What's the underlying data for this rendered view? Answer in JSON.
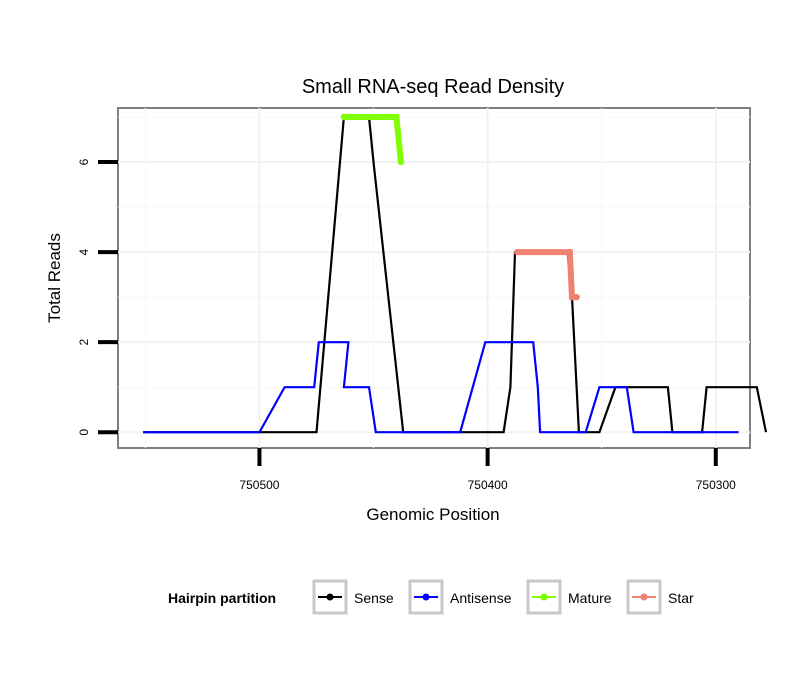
{
  "chart_data": {
    "type": "line",
    "title": "Small RNA-seq Read Density",
    "xlabel": "Genomic Position",
    "ylabel": "Total Reads",
    "x_reversed": true,
    "xlim": [
      750562,
      750285
    ],
    "ylim": [
      -0.35,
      7.2
    ],
    "x_ticks": [
      750500,
      750400,
      750300
    ],
    "x_tick_labels": [
      "750500",
      "750400",
      "750300"
    ],
    "y_ticks": [
      0,
      2,
      4,
      6
    ],
    "y_tick_labels": [
      "0",
      "2",
      "4",
      "6"
    ],
    "grid": true,
    "legend": {
      "title": "Hairpin partition",
      "position": "bottom",
      "entries": [
        {
          "name": "Sense",
          "color": "#000000"
        },
        {
          "name": "Antisense",
          "color": "#0000ff"
        },
        {
          "name": "Mature",
          "color": "#7fff00"
        },
        {
          "name": "Star",
          "color": "#f08070"
        }
      ]
    },
    "series": [
      {
        "name": "Sense",
        "color": "#000000",
        "points": [
          [
            750551,
            0
          ],
          [
            750475,
            0
          ],
          [
            750463,
            7
          ],
          [
            750452,
            7
          ],
          [
            750450,
            6
          ],
          [
            750437,
            0
          ],
          [
            750393,
            0
          ],
          [
            750390,
            1
          ],
          [
            750388,
            4
          ],
          [
            750365,
            4
          ],
          [
            750363,
            3
          ],
          [
            750360,
            0
          ],
          [
            750351,
            0
          ],
          [
            750344,
            1
          ],
          [
            750321,
            1
          ],
          [
            750319,
            0
          ],
          [
            750306,
            0
          ],
          [
            750304,
            1
          ],
          [
            750282,
            1
          ],
          [
            750278,
            0
          ]
        ]
      },
      {
        "name": "Antisense",
        "color": "#0000ff",
        "points": [
          [
            750551,
            0
          ],
          [
            750500,
            0
          ],
          [
            750489,
            1
          ],
          [
            750476,
            1
          ],
          [
            750474,
            2
          ],
          [
            750461,
            2
          ],
          [
            750463,
            1
          ],
          [
            750452,
            1
          ],
          [
            750449,
            0
          ],
          [
            750412,
            0
          ],
          [
            750401,
            2
          ],
          [
            750380,
            2
          ],
          [
            750378,
            1
          ],
          [
            750377,
            0
          ],
          [
            750357,
            0
          ],
          [
            750351,
            1
          ],
          [
            750339,
            1
          ],
          [
            750336,
            0
          ],
          [
            750298,
            0
          ],
          [
            750290,
            0
          ]
        ]
      },
      {
        "name": "Mature",
        "color": "#7fff00",
        "points": [
          [
            750463,
            7
          ],
          [
            750440,
            7
          ],
          [
            750438,
            6
          ]
        ]
      },
      {
        "name": "Star",
        "color": "#f08070",
        "points": [
          [
            750387,
            4
          ],
          [
            750364,
            4
          ],
          [
            750363,
            3
          ],
          [
            750361,
            3
          ]
        ]
      }
    ]
  }
}
